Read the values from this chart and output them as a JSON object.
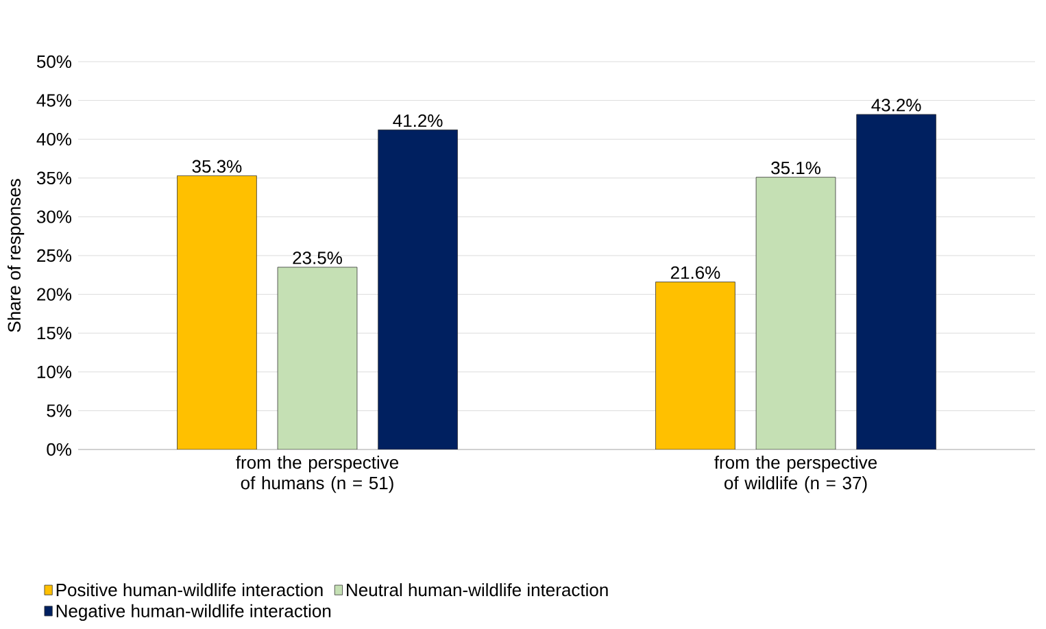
{
  "chart_data": {
    "type": "bar",
    "ylabel": "Share of responses",
    "categories": [
      "from the perspective of humans (n = 51)",
      "from the perspective of wildlife (n = 37)"
    ],
    "series": [
      {
        "name": "Positive human-wildlife interaction",
        "color": "#ffc000",
        "values": [
          35.3,
          21.6
        ],
        "value_labels": [
          "35.3%",
          "21.6%"
        ]
      },
      {
        "name": "Neutral human-wildlife interaction",
        "color": "#c5e0b4",
        "values": [
          23.5,
          35.1
        ],
        "value_labels": [
          "23.5%",
          "35.1%"
        ]
      },
      {
        "name": "Negative human-wildlife interaction",
        "color": "#002060",
        "values": [
          41.2,
          43.2
        ],
        "value_labels": [
          "41.2%",
          "43.2%"
        ]
      }
    ],
    "ylim": [
      0,
      50
    ],
    "yticks": [
      {
        "value": 0,
        "label": "0%"
      },
      {
        "value": 5,
        "label": "5%"
      },
      {
        "value": 10,
        "label": "10%"
      },
      {
        "value": 15,
        "label": "15%"
      },
      {
        "value": 20,
        "label": "20%"
      },
      {
        "value": 25,
        "label": "25%"
      },
      {
        "value": 30,
        "label": "30%"
      },
      {
        "value": 35,
        "label": "35%"
      },
      {
        "value": 40,
        "label": "40%"
      },
      {
        "value": 45,
        "label": "45%"
      },
      {
        "value": 50,
        "label": "50%"
      }
    ],
    "grid": "y",
    "legend": "bottom"
  }
}
